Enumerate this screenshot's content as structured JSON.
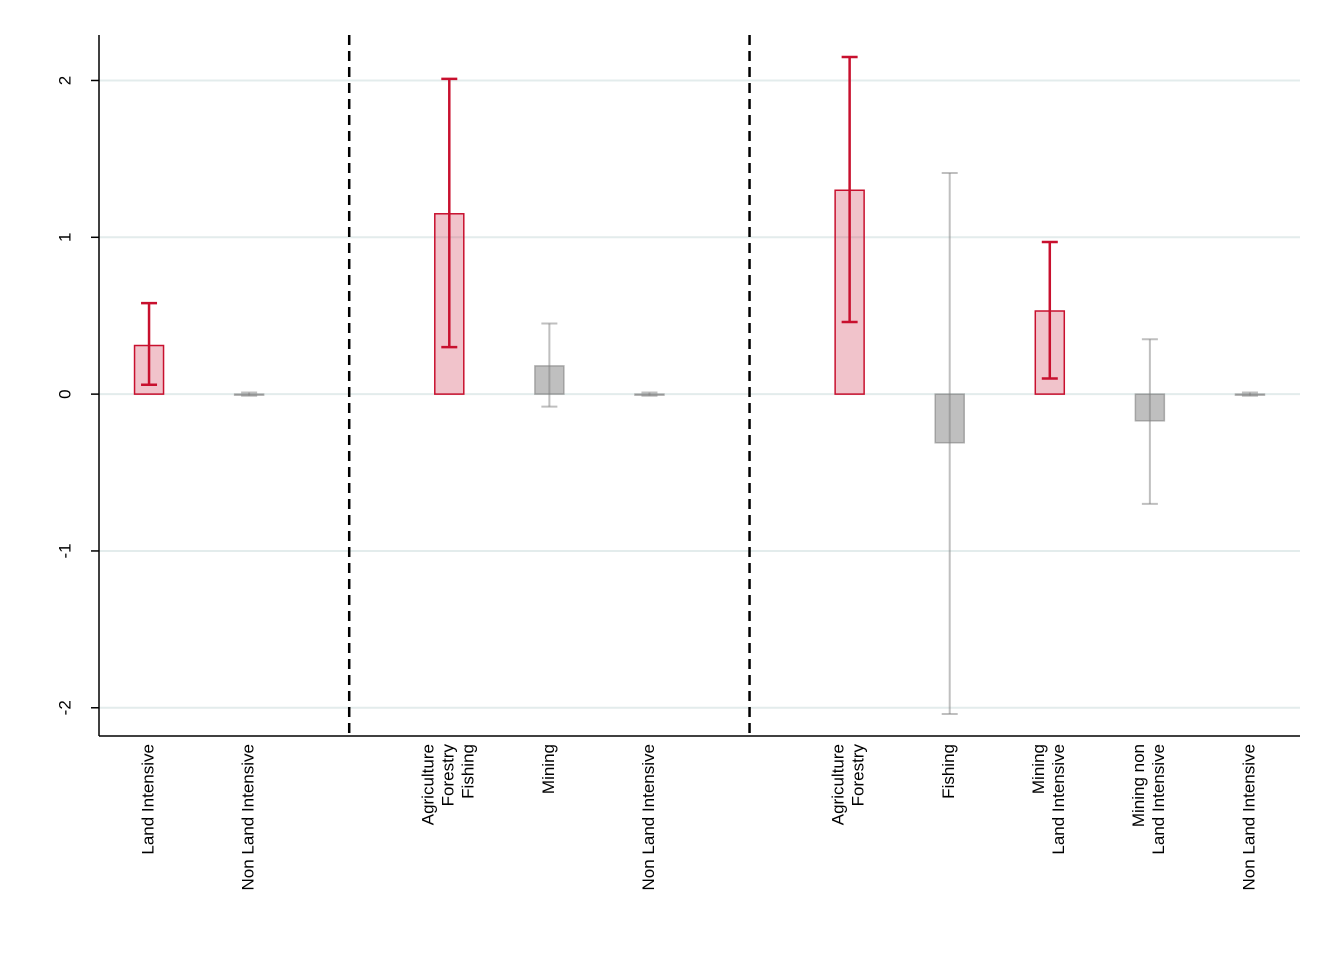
{
  "chart_data": {
    "type": "bar",
    "categories": [
      "Land Intensive",
      "Non Land Intensive",
      null,
      "Agriculture\nForestry\nFishing",
      "Mining",
      "Non Land Intensive",
      null,
      "Agriculture\nForestry",
      "Fishing",
      "Mining\nLand Intensive",
      "Mining non\nLand Intensive",
      "Non Land Intensive"
    ],
    "values": [
      0.31,
      0.0,
      null,
      1.15,
      0.18,
      0.0,
      null,
      1.3,
      -0.31,
      0.53,
      -0.17,
      0.0
    ],
    "ci_low": [
      0.06,
      -0.01,
      null,
      0.3,
      -0.08,
      -0.01,
      null,
      0.46,
      -2.04,
      0.1,
      -0.7,
      -0.01
    ],
    "ci_high": [
      0.58,
      0.01,
      null,
      2.01,
      0.45,
      0.01,
      null,
      2.15,
      1.41,
      0.97,
      0.35,
      0.01
    ],
    "colors": [
      "#c8102e",
      "#808080",
      null,
      "#c8102e",
      "#808080",
      "#808080",
      null,
      "#c8102e",
      "#808080",
      "#c8102e",
      "#808080",
      "#808080"
    ],
    "ylim": [
      -2.18,
      2.29
    ],
    "yticks": [
      -2,
      -1,
      0,
      1,
      2
    ],
    "grid": true
  }
}
